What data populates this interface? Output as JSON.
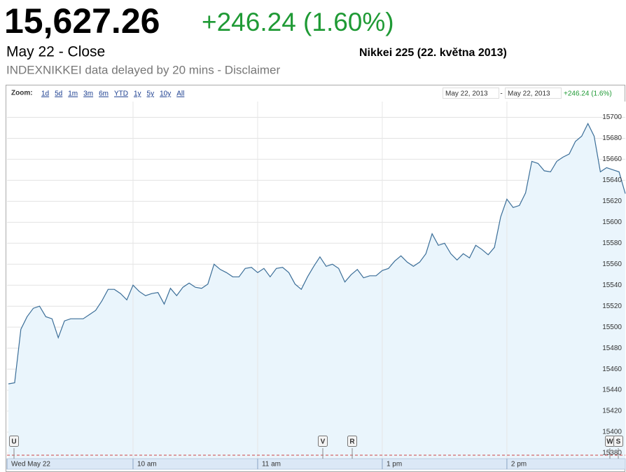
{
  "header": {
    "price": "15,627.26",
    "change": "+246.24 (1.60%)",
    "date_close": "May 22 - Close",
    "chart_title": "Nikkei 225 (22. května 2013)",
    "source_note": "INDEXNIKKEI data delayed by 20 mins - Disclaimer"
  },
  "zoom": {
    "label": "Zoom:",
    "options": [
      "1d",
      "5d",
      "1m",
      "3m",
      "6m",
      "YTD",
      "1y",
      "5y",
      "10y",
      "All"
    ]
  },
  "range": {
    "from": "May 22, 2013",
    "separator": "-",
    "to": "May 22, 2013",
    "change": "+246.24 (1.6%)"
  },
  "event_flags": [
    "U",
    "V",
    "R",
    "W",
    "S"
  ],
  "chart_data": {
    "type": "line",
    "categories": [
      "Wed May 22",
      null,
      null,
      null,
      null,
      null,
      null,
      null,
      null,
      null,
      null,
      null,
      null,
      null,
      null,
      null,
      null,
      null,
      null,
      null,
      "10 am",
      null,
      null,
      null,
      null,
      null,
      null,
      null,
      null,
      null,
      null,
      null,
      null,
      null,
      null,
      null,
      null,
      null,
      null,
      null,
      "11 am",
      null,
      null,
      null,
      null,
      null,
      null,
      null,
      null,
      null,
      null,
      null,
      null,
      null,
      null,
      null,
      null,
      null,
      null,
      null,
      "1 pm",
      null,
      null,
      null,
      null,
      null,
      null,
      null,
      null,
      null,
      null,
      null,
      null,
      null,
      null,
      null,
      null,
      null,
      null,
      null,
      "2 pm",
      null,
      null,
      null,
      null,
      null,
      null,
      null,
      null,
      null,
      null,
      null,
      null,
      null,
      null,
      null,
      null,
      null,
      null,
      null
    ],
    "series": [
      {
        "name": "Nikkei 225",
        "color": "#3b6e98",
        "fill": "#eaf5fc",
        "values": [
          15446,
          15447,
          15498,
          15510,
          15518,
          15520,
          15510,
          15508,
          15490,
          15506,
          15508,
          15508,
          15508,
          15512,
          15516,
          15525,
          15536,
          15536,
          15532,
          15526,
          15540,
          15534,
          15530,
          15532,
          15533,
          15522,
          15537,
          15530,
          15538,
          15542,
          15538,
          15537,
          15541,
          15560,
          15555,
          15552,
          15548,
          15548,
          15556,
          15557,
          15552,
          15556,
          15548,
          15556,
          15557,
          15552,
          15541,
          15536,
          15548,
          15558,
          15567,
          15558,
          15560,
          15556,
          15543,
          15550,
          15555,
          15547,
          15549,
          15549,
          15554,
          15556,
          15563,
          15568,
          15562,
          15558,
          15562,
          15570,
          15589,
          15578,
          15580,
          15570,
          15564,
          15570,
          15566,
          15578,
          15574,
          15569,
          15576,
          15605,
          15622,
          15614,
          15616,
          15628,
          15658,
          15656,
          15649,
          15648,
          15658,
          15662,
          15665,
          15677,
          15682,
          15694,
          15682,
          15648,
          15652,
          15650,
          15648,
          15627.26
        ]
      }
    ],
    "ylim": [
      15380,
      15715
    ],
    "yticks": [
      15380,
      15400,
      15420,
      15440,
      15460,
      15480,
      15500,
      15520,
      15540,
      15560,
      15580,
      15600,
      15620,
      15640,
      15660,
      15680,
      15700
    ],
    "grid": true
  }
}
